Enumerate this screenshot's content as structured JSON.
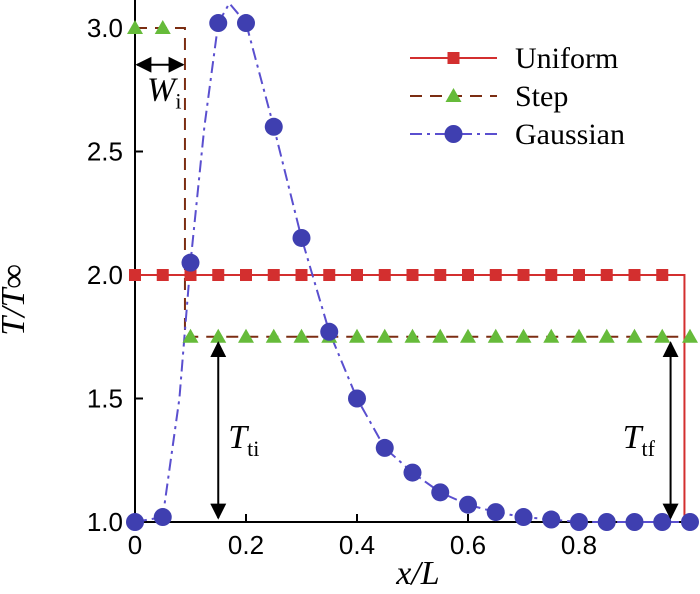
{
  "chart_data": {
    "type": "line",
    "xlabel": "x/L",
    "ylabel": "T/T∞",
    "xlim": [
      0,
      1.0
    ],
    "ylim": [
      1.0,
      3.1
    ],
    "x_ticks": [
      "0",
      "0.2",
      "0.4",
      "0.6",
      "0.8"
    ],
    "y_ticks": [
      "1.0",
      "1.5",
      "2.0",
      "2.5",
      "3.0"
    ],
    "legend": {
      "position": "top-right",
      "entries": [
        "Uniform",
        "Step",
        "Gaussian"
      ]
    },
    "series": [
      {
        "name": "Uniform",
        "color": "#d32f2f",
        "line": "solid",
        "marker": "square",
        "x": [
          0,
          0.05,
          0.1,
          0.15,
          0.2,
          0.25,
          0.3,
          0.35,
          0.4,
          0.45,
          0.5,
          0.55,
          0.6,
          0.65,
          0.7,
          0.75,
          0.8,
          0.85,
          0.9,
          0.95
        ],
        "y": [
          2.0,
          2.0,
          2.0,
          2.0,
          2.0,
          2.0,
          2.0,
          2.0,
          2.0,
          2.0,
          2.0,
          2.0,
          2.0,
          2.0,
          2.0,
          2.0,
          2.0,
          2.0,
          2.0,
          2.0
        ],
        "line_x": [
          0,
          0.99,
          0.99,
          1.0
        ],
        "line_y": [
          2.0,
          2.0,
          1.0,
          1.0
        ]
      },
      {
        "name": "Step",
        "color": "#7b2d12",
        "marker_color": "#66bb3a",
        "line": "dashed",
        "marker": "triangle",
        "x": [
          0,
          0.05,
          0.1,
          0.15,
          0.2,
          0.25,
          0.3,
          0.35,
          0.4,
          0.45,
          0.5,
          0.55,
          0.6,
          0.65,
          0.7,
          0.75,
          0.8,
          0.85,
          0.9,
          0.95,
          1.0
        ],
        "y": [
          3.0,
          3.0,
          1.75,
          1.75,
          1.75,
          1.75,
          1.75,
          1.75,
          1.75,
          1.75,
          1.75,
          1.75,
          1.75,
          1.75,
          1.75,
          1.75,
          1.75,
          1.75,
          1.75,
          1.75,
          1.75
        ],
        "line_x": [
          0,
          0.09,
          0.09,
          0.1,
          1.0
        ],
        "line_y": [
          3.0,
          3.0,
          1.75,
          1.75,
          1.75
        ]
      },
      {
        "name": "Gaussian",
        "color": "#5a4fcf",
        "marker_color": "#3f3fb0",
        "line": "dashdot",
        "marker": "circle",
        "x": [
          0,
          0.05,
          0.1,
          0.15,
          0.2,
          0.25,
          0.3,
          0.35,
          0.4,
          0.45,
          0.5,
          0.55,
          0.6,
          0.65,
          0.7,
          0.75,
          0.8,
          0.85,
          0.9,
          0.95,
          1.0
        ],
        "y": [
          1.0,
          1.02,
          2.05,
          3.02,
          3.02,
          2.6,
          2.15,
          1.77,
          1.5,
          1.3,
          1.2,
          1.12,
          1.07,
          1.04,
          1.02,
          1.01,
          1.0,
          1.0,
          1.0,
          1.0,
          1.0
        ],
        "line_x": [
          0,
          0.05,
          0.08,
          0.1,
          0.125,
          0.15,
          0.17,
          0.2,
          0.25,
          0.3,
          0.35,
          0.4,
          0.45,
          0.5,
          0.55,
          0.6,
          0.65,
          0.7,
          0.75,
          0.8,
          0.85,
          0.9,
          0.95,
          1.0
        ],
        "line_y": [
          1.0,
          1.02,
          1.5,
          2.05,
          2.6,
          3.02,
          3.1,
          3.02,
          2.6,
          2.15,
          1.77,
          1.5,
          1.3,
          1.2,
          1.12,
          1.07,
          1.04,
          1.02,
          1.01,
          1.0,
          1.0,
          1.0,
          1.0,
          1.0
        ]
      }
    ],
    "annotations": [
      {
        "label": "W",
        "sub": "i",
        "type": "horizontal-span",
        "x_from": 0,
        "x_to": 0.09,
        "y": 2.9
      },
      {
        "label": "T",
        "sub": "ti",
        "type": "vertical-span",
        "x": 0.15,
        "y_from": 1.0,
        "y_to": 1.75
      },
      {
        "label": "T",
        "sub": "tf",
        "type": "vertical-span",
        "x": 0.965,
        "y_from": 1.0,
        "y_to": 1.75
      }
    ]
  }
}
